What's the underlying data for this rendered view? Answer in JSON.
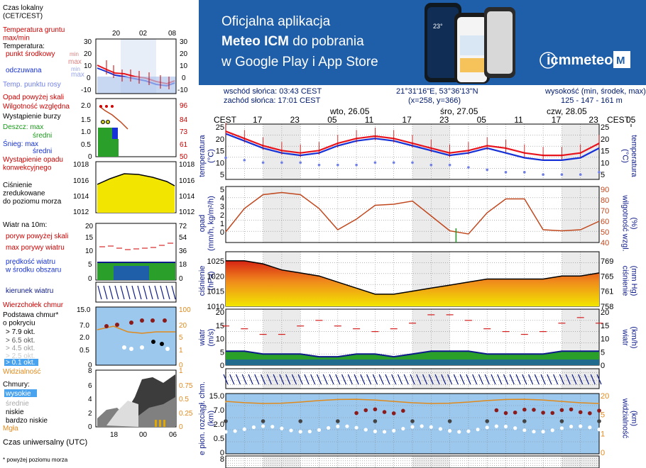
{
  "legend": {
    "local_time_label": "Czas lokalny\n(CET/CEST)",
    "local_ticks": [
      "20",
      "02",
      "08"
    ],
    "temp_ground": "Temperatura gruntu\nmax/min",
    "temperature": "Temperatura:",
    "dew_center": "punkt środkowy",
    "temp_max": "max",
    "temp_min": "min",
    "feels": "odczuwana",
    "feels_max": "max",
    "feels_min": "min",
    "dewpoint": "Temp. punktu rosy",
    "temp_ticks": [
      "30",
      "20",
      "10",
      "0",
      "-10"
    ],
    "precip_above": "Opad powyżej skali",
    "humidity": "Wilgotność względna",
    "storm": "Wystąpienie burzy",
    "rain": "Deszcz: max",
    "rain_mid": "średni",
    "snow": "Śnieg: max",
    "snow_mid": "średni",
    "precip_conv": "Wystąpienie opadu\nkonwekcyjnego",
    "precip_ticks_l": [
      "2.0",
      "1.5",
      "1.0",
      "0.5",
      "0"
    ],
    "precip_ticks_r": [
      "96",
      "84",
      "73",
      "61",
      "50"
    ],
    "pressure": "Ciśnienie\nzredukowane\ndo poziomu morza",
    "press_ticks": [
      "1018",
      "1016",
      "1014",
      "1012"
    ],
    "wind_label": "Wiatr na 10m:",
    "gust_above": "poryw powyżej skali",
    "gust_max": "max porywy wiatru",
    "wind_speed": "prędkość wiatru\nw środku obszaru",
    "wind_ticks_l": [
      "20",
      "15",
      "10",
      "5",
      "0"
    ],
    "wind_ticks_r": [
      "72",
      "54",
      "36",
      "18",
      "0"
    ],
    "wind_dir": "kierunek wiatru",
    "cloud_top": "Wierzchołek chmur",
    "cloud_base": "Podstawa chmur*\no pokryciu",
    "okt79": "> 7.9 okt.",
    "okt65": "> 6.5 okt.",
    "okt45": "> 4.5 okt.",
    "okt25": "> 2.5 okt.",
    "okt01": "> 0.1 okt.",
    "cloud_ticks_l": [
      "15.0",
      "7.0",
      "2.0",
      "0.5",
      "0"
    ],
    "cloud_ticks_r": [
      "100",
      "20",
      "5",
      "1",
      "0"
    ],
    "visibility": "Widzialność",
    "clouds": "Chmury:",
    "cl_high": "wysokie",
    "cl_mid": "średnie",
    "cl_low": "niskie",
    "cl_vlow": "bardzo niskie",
    "fog": "Mgła",
    "cl_ticks_l": [
      "8",
      "6",
      "4",
      "2",
      "0"
    ],
    "cl_ticks_r": [
      "1",
      "0.75",
      "0.5",
      "0.25",
      "0"
    ],
    "utc_label": "Czas uniwersalny (UTC)",
    "utc_ticks": [
      "18",
      "00",
      "06"
    ],
    "footnote": "* powyżej poziomu morza"
  },
  "banner": {
    "line1": "Oficjalna aplikacja",
    "line2_bold": "Meteo ICM",
    "line2_rest": " do pobrania",
    "line3": "w Google Play i App Store",
    "brand": "icmmeteo",
    "phone_text": "23°"
  },
  "header": {
    "sunrise": "wschód słońca: 03:43 CEST",
    "sunset": "zachód słońca: 17:01 CEST",
    "coords": "21°31'16\"E, 53°36'13\"N",
    "grid": "(x=258,  y=366)",
    "elev_label": "wysokość (min, środek, max)",
    "elev": "125 - 147 - 161 m"
  },
  "axes": {
    "tz": "CEST",
    "days": [
      "wto, 26.05",
      "śro, 27.05",
      "czw, 28.05"
    ],
    "hour_ticks": [
      "17",
      "23",
      "05",
      "11",
      "17",
      "23",
      "05",
      "11",
      "17",
      "23",
      "05",
      "11",
      "17"
    ],
    "temp_label": "temperatura\n(°C)",
    "precip_label": "opad\n(mm/h, kg/m²/h)",
    "hum_label": "(%)\nwilgotność wzgl.",
    "press_label_l": "ciśnienie\n(hPa)",
    "press_label_r": "(mm Hg)\nciśnienie",
    "wind_label_l": "wiatr\n(m/s)",
    "wind_label_r": "(km/h)\nwiatr",
    "cloud_label_l": "e pion. rozciągł. chm.\n(km)",
    "cloud_label_r": "(km)\nwidzialność",
    "temp_ticks": [
      "25",
      "20",
      "15",
      "10",
      "5"
    ],
    "precip_ticks": [
      "5",
      "4",
      "3",
      "2",
      "1",
      "0"
    ],
    "hum_ticks": [
      "90",
      "80",
      "70",
      "60",
      "50",
      "40"
    ],
    "press_ticks_l": [
      "1025",
      "1020",
      "1015",
      "1010"
    ],
    "press_ticks_r": [
      "769",
      "765",
      "761",
      "758"
    ],
    "wind_ticks_l": [
      "20",
      "15",
      "10",
      "5",
      "0"
    ],
    "wind_ticks_r": [
      "72",
      "54",
      "36",
      "18",
      "0"
    ],
    "cloud_ticks_l": [
      "15.0",
      "7.0",
      "2.0",
      "0.5",
      "0"
    ],
    "cloud_ticks_r": [
      "20",
      "5",
      "1",
      "0"
    ],
    "last_tick": "8"
  },
  "colors": {
    "banner": "#1f5ea8",
    "temp": "#e8141e",
    "feels": "#1631d6",
    "dew": "#6f7fe6",
    "pressure_fill": "#f2e600",
    "humidity": "#c0481e",
    "wind": "#0d1a88",
    "gust": "#d51f1f",
    "cloud_bg": "#9cc8ee",
    "visibility": "#e08a1c"
  },
  "chart_data": [
    {
      "type": "line",
      "title": "temperatura",
      "ylabel": "(°C)",
      "x": [
        0,
        3,
        6,
        9,
        12,
        15,
        18,
        21,
        24,
        27,
        30,
        33,
        36,
        39,
        42,
        45,
        48,
        51,
        54,
        57,
        60
      ],
      "series": [
        {
          "name": "temperatura",
          "values": [
            22,
            19,
            16,
            14,
            13,
            14,
            17,
            19,
            20,
            19,
            17,
            15,
            13,
            14,
            16,
            15,
            13,
            12,
            12,
            13,
            17
          ]
        },
        {
          "name": "odczuwana",
          "values": [
            21,
            18,
            15,
            13,
            12,
            13,
            16,
            18,
            19,
            18,
            16,
            14,
            12,
            13,
            15,
            13,
            11,
            10,
            10,
            11,
            15
          ]
        },
        {
          "name": "punkt rosy",
          "values": [
            11,
            10,
            9,
            9,
            9,
            8,
            8,
            8,
            9,
            9,
            9,
            8,
            8,
            7,
            6,
            5,
            5,
            4,
            4,
            4,
            5
          ]
        }
      ],
      "ylim": [
        2,
        25
      ]
    },
    {
      "type": "line",
      "title": "opad / wilgotność wzgl.",
      "x": [
        0,
        3,
        6,
        9,
        12,
        15,
        18,
        21,
        24,
        27,
        30,
        33,
        36,
        39,
        42,
        45,
        48,
        51,
        54,
        57,
        60
      ],
      "series": [
        {
          "name": "wilgotność wzgl.",
          "values": [
            50,
            72,
            85,
            87,
            85,
            72,
            52,
            62,
            75,
            76,
            79,
            65,
            51,
            48,
            68,
            81,
            81,
            52,
            51,
            52,
            60
          ]
        }
      ],
      "ylim": [
        40,
        90
      ]
    },
    {
      "type": "area",
      "title": "ciśnienie",
      "ylabel": "(hPa)",
      "x": [
        0,
        3,
        6,
        9,
        12,
        15,
        18,
        21,
        24,
        27,
        30,
        33,
        36,
        39,
        42,
        45,
        48,
        51,
        54,
        57,
        60
      ],
      "series": [
        {
          "name": "ciśnienie",
          "values": [
            1025,
            1025,
            1024,
            1022,
            1021,
            1020,
            1018,
            1016,
            1014,
            1014,
            1015,
            1016,
            1017,
            1018,
            1019,
            1019,
            1019,
            1019,
            1020,
            1020,
            1021
          ]
        }
      ],
      "ylim": [
        1010,
        1028
      ]
    },
    {
      "type": "line",
      "title": "wiatr",
      "ylabel": "(m/s)",
      "x": [
        0,
        3,
        6,
        9,
        12,
        15,
        18,
        21,
        24,
        27,
        30,
        33,
        36,
        39,
        42,
        45,
        48,
        51,
        54,
        57,
        60
      ],
      "series": [
        {
          "name": "prędkość wiatru",
          "values": [
            5,
            5,
            4,
            4,
            4,
            3,
            3,
            4,
            4,
            3,
            4,
            5,
            5,
            5,
            4,
            4,
            4,
            4,
            5,
            5,
            5
          ]
        },
        {
          "name": "max porywy wiatru",
          "values": [
            14,
            13,
            11,
            11,
            14,
            16,
            14,
            13,
            12,
            13,
            15,
            18,
            18,
            16,
            13,
            12,
            11,
            12,
            15,
            17,
            15
          ]
        }
      ],
      "ylim": [
        0,
        20
      ]
    }
  ]
}
